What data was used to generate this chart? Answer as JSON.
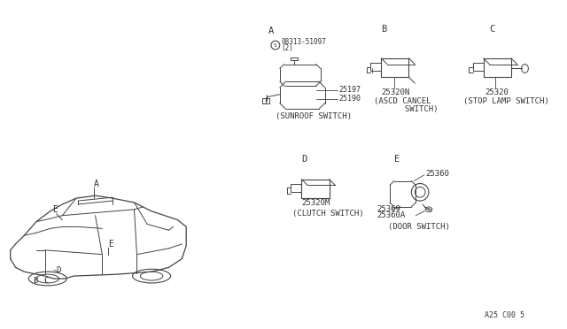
{
  "bg_color": "#ffffff",
  "line_color": "#444444",
  "text_color": "#333333",
  "page_ref": "A25 C00 5",
  "sections": {
    "A_label": "A",
    "A_part1": "08313-51097",
    "A_part1_prefix": "S",
    "A_part1_qty": "(2)",
    "A_part2": "25197",
    "A_part3": "25190",
    "A_caption": "(SUNROOF SWITCH)",
    "B_label": "B",
    "B_part": "25320N",
    "B_caption1": "(ASCD CANCEL",
    "B_caption2": "     SWITCH)",
    "C_label": "C",
    "C_part": "25320",
    "C_caption": "(STOP LAMP SWITCH)",
    "D_label": "D",
    "D_part": "25320M",
    "D_caption": "(CLUTCH SWITCH)",
    "E_label": "E",
    "E_part1": "25360",
    "E_part2": "25369",
    "E_part3": "25360A",
    "E_caption": "(DOOR SWITCH)"
  }
}
